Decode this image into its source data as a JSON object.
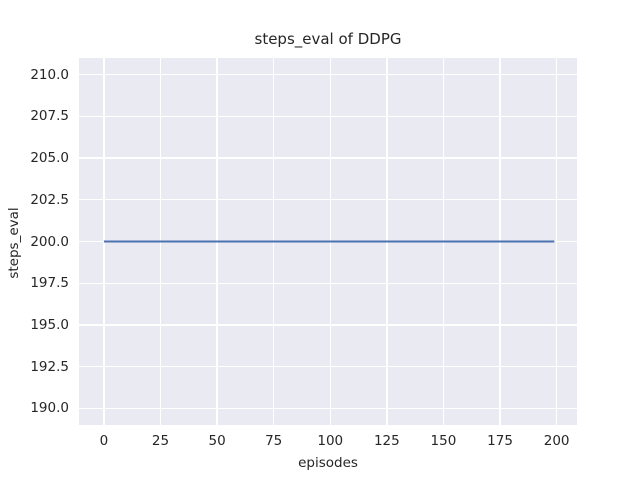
{
  "chart_data": {
    "type": "line",
    "title": "steps_eval of DDPG",
    "xlabel": "episodes",
    "ylabel": "steps_eval",
    "series": [
      {
        "name": "steps_eval",
        "color": "#4c72b0",
        "x": [
          0,
          199
        ],
        "y": [
          200,
          200
        ]
      }
    ],
    "xlim": [
      -11,
      209
    ],
    "ylim": [
      189,
      211
    ],
    "xticks": [
      0,
      25,
      50,
      75,
      100,
      125,
      150,
      175,
      200
    ],
    "xtick_labels": [
      "0",
      "25",
      "50",
      "75",
      "100",
      "125",
      "150",
      "175",
      "200"
    ],
    "yticks": [
      190.0,
      192.5,
      195.0,
      197.5,
      200.0,
      202.5,
      205.0,
      207.5,
      210.0
    ],
    "ytick_labels": [
      "190.0",
      "192.5",
      "195.0",
      "197.5",
      "200.0",
      "202.5",
      "205.0",
      "207.5",
      "210.0"
    ],
    "grid": true,
    "legend_position": "none",
    "colors": {
      "figure_background": "#ffffff",
      "plot_background": "#eaeaf2",
      "grid_color": "#ffffff",
      "text_color": "#262626",
      "line_color": "#4c72b0"
    }
  }
}
